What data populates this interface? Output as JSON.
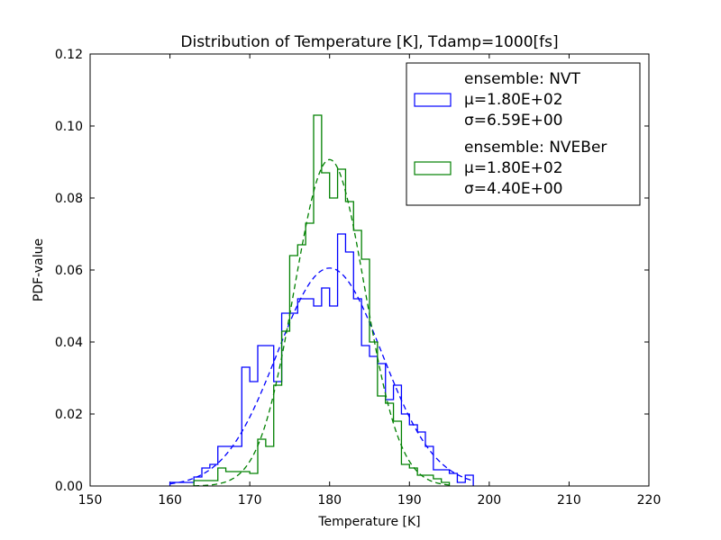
{
  "chart_data": {
    "type": "histogram",
    "title": "Distribution of Temperature [K], Tdamp=1000[fs]",
    "xlabel": "Temperature [K]",
    "ylabel": "PDF-value",
    "xlim": [
      150,
      220
    ],
    "ylim": [
      0,
      0.12
    ],
    "xticks": [
      150,
      160,
      170,
      180,
      190,
      200,
      210,
      220
    ],
    "xtick_labels": [
      "150",
      "160",
      "170",
      "180",
      "190",
      "200",
      "210",
      "220"
    ],
    "yticks": [
      0,
      0.02,
      0.04,
      0.06,
      0.08,
      0.1,
      0.12
    ],
    "ytick_labels": [
      "0.00",
      "0.02",
      "0.04",
      "0.06",
      "0.08",
      "0.10",
      "0.12"
    ],
    "grid": false,
    "legend_position": "top-right",
    "series": [
      {
        "name": "ensemble: NVT",
        "mu_label": "μ=1.80E+02",
        "sigma_label": "σ=6.59E+00",
        "mu": 180.0,
        "sigma": 6.59,
        "color": "#0000ff",
        "bin_edges": [
          160.0,
          161.0,
          162.0,
          163.0,
          164.0,
          165.0,
          166.0,
          167.0,
          168.0,
          169.0,
          170.0,
          171.0,
          172.0,
          173.0,
          174.0,
          175.0,
          176.0,
          177.0,
          178.0,
          179.0,
          180.0,
          181.0,
          182.0,
          183.0,
          184.0,
          185.0,
          186.0,
          187.0,
          188.0,
          189.0,
          190.0,
          191.0,
          192.0,
          193.0,
          194.0,
          195.0,
          196.0,
          197.0,
          198.0
        ],
        "densities": [
          0.001,
          0.001,
          0.001,
          0.0025,
          0.005,
          0.006,
          0.011,
          0.011,
          0.011,
          0.033,
          0.029,
          0.039,
          0.039,
          0.029,
          0.048,
          0.048,
          0.052,
          0.052,
          0.05,
          0.055,
          0.05,
          0.07,
          0.065,
          0.052,
          0.039,
          0.036,
          0.034,
          0.024,
          0.028,
          0.02,
          0.017,
          0.015,
          0.011,
          0.0045,
          0.0045,
          0.0035,
          0.001,
          0.003
        ]
      },
      {
        "name": "ensemble: NVEBer",
        "mu_label": "μ=1.80E+02",
        "sigma_label": "σ=4.40E+00",
        "mu": 180.0,
        "sigma": 4.4,
        "color": "#008000",
        "bin_edges": [
          163.0,
          164.0,
          165.0,
          166.0,
          167.0,
          168.0,
          169.0,
          170.0,
          171.0,
          172.0,
          173.0,
          174.0,
          175.0,
          176.0,
          177.0,
          178.0,
          179.0,
          180.0,
          181.0,
          182.0,
          183.0,
          184.0,
          185.0,
          186.0,
          187.0,
          188.0,
          189.0,
          190.0,
          191.0,
          192.0,
          193.0,
          194.0,
          195.0
        ],
        "densities": [
          0.0015,
          0.0015,
          0.0015,
          0.005,
          0.004,
          0.004,
          0.004,
          0.0035,
          0.013,
          0.011,
          0.028,
          0.043,
          0.064,
          0.067,
          0.073,
          0.103,
          0.087,
          0.08,
          0.088,
          0.079,
          0.071,
          0.063,
          0.04,
          0.025,
          0.023,
          0.018,
          0.006,
          0.005,
          0.003,
          0.003,
          0.002,
          0.001
        ]
      }
    ]
  }
}
